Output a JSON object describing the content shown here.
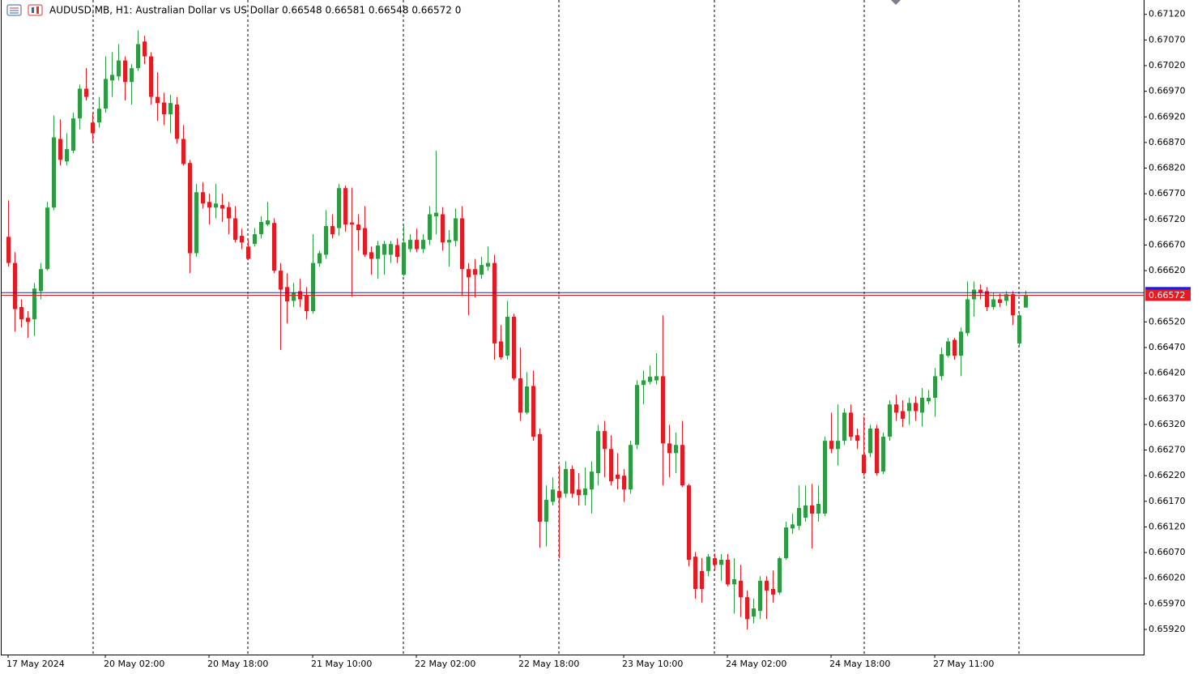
{
  "chart_data": {
    "type": "candlestick",
    "title": "AUDUSD.MB, H1:  Australian Dollar vs US Dollar  0.66548 0.66581 0.66548 0.66572  0",
    "categories": [
      "17 May 2024",
      null,
      null,
      null,
      null,
      null,
      null,
      null,
      null,
      null,
      null,
      null,
      null,
      null,
      null,
      "20 May 02:00",
      null,
      null,
      null,
      null,
      null,
      null,
      null,
      null,
      null,
      null,
      null,
      null,
      null,
      null,
      null,
      "20 May 18:00",
      null,
      null,
      null,
      null,
      null,
      null,
      null,
      null,
      null,
      null,
      null,
      null,
      null,
      null,
      null,
      "21 May 10:00",
      null,
      null,
      null,
      null,
      null,
      null,
      null,
      null,
      null,
      null,
      null,
      null,
      null,
      null,
      null,
      "22 May 02:00",
      null,
      null,
      null,
      null,
      null,
      null,
      null,
      null,
      null,
      null,
      null,
      null,
      null,
      null,
      null,
      "22 May 18:00",
      null,
      null,
      null,
      null,
      null,
      null,
      null,
      null,
      null,
      null,
      null,
      null,
      null,
      null,
      null,
      "23 May 10:00",
      null,
      null,
      null,
      null,
      null,
      null,
      null,
      null,
      null,
      null,
      null,
      null,
      null,
      null,
      null,
      "24 May 02:00",
      null,
      null,
      null,
      null,
      null,
      null,
      null,
      null,
      null,
      null,
      null,
      null,
      null,
      null,
      null,
      "24 May 18:00",
      null,
      null,
      null,
      null,
      null,
      null,
      null,
      null,
      null,
      null,
      null,
      null,
      null,
      null,
      null,
      "27 May 11:00",
      null,
      null,
      null,
      null,
      null,
      null,
      null,
      null,
      null,
      null,
      null,
      null,
      null,
      null
    ],
    "open": [
      0.66686,
      0.66635,
      0.66549,
      0.66528,
      0.66525,
      0.6658,
      0.66623,
      0.66743,
      0.66877,
      0.66833,
      0.66854,
      0.66917,
      0.66975,
      0.66909,
      0.66909,
      0.66936,
      0.66991,
      0.66999,
      0.6703,
      0.66988,
      0.67015,
      0.67067,
      0.67038,
      0.66959,
      0.66948,
      0.66925,
      0.66944,
      0.66877,
      0.6683,
      0.66654,
      0.66773,
      0.66754,
      0.66743,
      0.66748,
      0.66744,
      0.66722,
      0.66688,
      0.66667,
      0.66672,
      0.66691,
      0.6671,
      0.66713,
      0.6662,
      0.66588,
      0.66561,
      0.6658,
      0.66572,
      0.66541,
      0.66634,
      0.66651,
      0.66707,
      0.66703,
      0.66781,
      0.66714,
      0.6671,
      0.66703,
      0.66656,
      0.66643,
      0.66651,
      0.66651,
      0.6667,
      0.66612,
      0.66662,
      0.6668,
      0.66662,
      0.6668,
      0.66726,
      0.6673,
      0.66675,
      0.66678,
      0.66722,
      0.66623,
      0.66623,
      0.66612,
      0.66628,
      0.66635,
      0.66482,
      0.66454,
      0.6653,
      0.6641,
      0.66343,
      0.66395,
      0.66301,
      0.6613,
      0.66169,
      0.6619,
      0.66185,
      0.66233,
      0.66193,
      0.66182,
      0.66193,
      0.66225,
      0.66307,
      0.66272,
      0.66222,
      0.6622,
      0.66193,
      0.6628,
      0.66397,
      0.66403,
      0.66406,
      0.66414,
      0.66283,
      0.66264,
      0.6628,
      0.66201,
      0.66062,
      0.66034,
      0.66034,
      0.66059,
      0.66046,
      0.66056,
      0.66008,
      0.66015,
      0.65983,
      0.65945,
      0.65956,
      0.66015,
      0.65999,
      0.65992,
      0.66059,
      0.66117,
      0.66122,
      0.66138,
      0.66162,
      0.66146,
      0.66146,
      0.66288,
      0.66272,
      0.66288,
      0.66343,
      0.66299,
      0.66261,
      0.66264,
      0.66312,
      0.66228,
      0.66296,
      0.66359,
      0.66346,
      0.66346,
      0.66362,
      0.66343,
      0.66365,
      0.66372,
      0.66414,
      0.66454,
      0.66485,
      0.66454,
      0.66498,
      0.66564,
      0.66583,
      0.6658,
      0.66549,
      0.66564,
      0.66561,
      0.66574,
      0.66478,
      0.66548
    ],
    "high": [
      0.66757,
      0.66656,
      0.66564,
      0.66541,
      0.66596,
      0.66635,
      0.66754,
      0.66923,
      0.66915,
      0.66888,
      0.66928,
      0.66983,
      0.67015,
      0.66928,
      0.66959,
      0.67038,
      0.67046,
      0.67062,
      0.67038,
      0.67023,
      0.67089,
      0.67078,
      0.67046,
      0.67007,
      0.66967,
      0.66963,
      0.66959,
      0.66904,
      0.66836,
      0.66789,
      0.66793,
      0.6677,
      0.66789,
      0.6677,
      0.66754,
      0.66746,
      0.66702,
      0.66681,
      0.66703,
      0.66726,
      0.66754,
      0.66722,
      0.66635,
      0.66615,
      0.66596,
      0.66604,
      0.66588,
      0.66691,
      0.66659,
      0.66738,
      0.6673,
      0.66789,
      0.66786,
      0.66782,
      0.6673,
      0.66746,
      0.66667,
      0.66678,
      0.66678,
      0.66678,
      0.66683,
      0.66707,
      0.66691,
      0.66702,
      0.66691,
      0.66746,
      0.66854,
      0.66744,
      0.66699,
      0.66741,
      0.66746,
      0.66635,
      0.66643,
      0.66647,
      0.66667,
      0.66651,
      0.66514,
      0.66561,
      0.66536,
      0.6647,
      0.66422,
      0.66425,
      0.66312,
      0.66201,
      0.66217,
      0.6624,
      0.66248,
      0.6624,
      0.66225,
      0.66236,
      0.66248,
      0.66319,
      0.66327,
      0.66299,
      0.66264,
      0.66233,
      0.66288,
      0.66406,
      0.66425,
      0.66435,
      0.66459,
      0.66533,
      0.66319,
      0.66304,
      0.66327,
      0.66204,
      0.66071,
      0.66059,
      0.66067,
      0.66068,
      0.66067,
      0.66067,
      0.66059,
      0.66046,
      0.65996,
      0.6598,
      0.66024,
      0.66024,
      0.66035,
      0.66062,
      0.6613,
      0.66146,
      0.66201,
      0.66201,
      0.66204,
      0.66201,
      0.66296,
      0.66343,
      0.66359,
      0.66351,
      0.66359,
      0.66312,
      0.66335,
      0.66319,
      0.66319,
      0.66304,
      0.66367,
      0.66378,
      0.66367,
      0.66372,
      0.66375,
      0.66391,
      0.66387,
      0.6643,
      0.6647,
      0.66489,
      0.66489,
      0.66509,
      0.66599,
      0.66599,
      0.66593,
      0.66588,
      0.66577,
      0.66575,
      0.6658,
      0.6658,
      0.66536,
      0.66581
    ],
    "low": [
      0.66628,
      0.66501,
      0.66509,
      0.66489,
      0.66493,
      0.66564,
      0.6662,
      0.66738,
      0.66825,
      0.66825,
      0.66849,
      0.66896,
      0.66952,
      0.66872,
      0.66899,
      0.66928,
      0.66959,
      0.66991,
      0.66952,
      0.66944,
      0.6701,
      0.67023,
      0.66944,
      0.66912,
      0.66904,
      0.66888,
      0.66868,
      0.66825,
      0.66615,
      0.66647,
      0.66741,
      0.6671,
      0.66722,
      0.66715,
      0.66691,
      0.66675,
      0.66662,
      0.6664,
      0.66667,
      0.66683,
      0.66707,
      0.66615,
      0.66465,
      0.66517,
      0.66549,
      0.66549,
      0.66525,
      0.66536,
      0.66628,
      0.66643,
      0.66683,
      0.66688,
      0.66696,
      0.66569,
      0.66659,
      0.66647,
      0.66612,
      0.66604,
      0.66612,
      0.66635,
      0.66635,
      0.66609,
      0.66656,
      0.66656,
      0.66654,
      0.6667,
      0.66691,
      0.66659,
      0.66628,
      0.66667,
      0.66572,
      0.66533,
      0.66568,
      0.66604,
      0.6662,
      0.66446,
      0.66446,
      0.66446,
      0.66406,
      0.66327,
      0.6634,
      0.66288,
      0.66079,
      0.66082,
      0.66162,
      0.66059,
      0.66177,
      0.66177,
      0.66162,
      0.66162,
      0.66146,
      0.66201,
      0.66217,
      0.66201,
      0.66193,
      0.66169,
      0.66185,
      0.66272,
      0.66359,
      0.66398,
      0.66398,
      0.66201,
      0.66217,
      0.66225,
      0.66198,
      0.66043,
      0.6598,
      0.65972,
      0.66024,
      0.66035,
      0.66015,
      0.66004,
      0.65951,
      0.65944,
      0.6592,
      0.65932,
      0.6594,
      0.6594,
      0.65972,
      0.65988,
      0.66056,
      0.66106,
      0.66114,
      0.6613,
      0.66078,
      0.6613,
      0.66141,
      0.66264,
      0.6624,
      0.6628,
      0.66288,
      0.66272,
      0.6622,
      0.66256,
      0.6622,
      0.66223,
      0.66288,
      0.66327,
      0.66315,
      0.66319,
      0.66327,
      0.66316,
      0.66359,
      0.66335,
      0.66406,
      0.66451,
      0.66446,
      0.66414,
      0.66493,
      0.6653,
      0.66564,
      0.66541,
      0.66544,
      0.66549,
      0.66552,
      0.66514,
      0.66473,
      0.66548
    ],
    "close": [
      0.66635,
      0.66545,
      0.66525,
      0.6652,
      0.66585,
      0.66623,
      0.66743,
      0.6688,
      0.66836,
      0.66857,
      0.66917,
      0.66975,
      0.66959,
      0.66888,
      0.66936,
      0.66994,
      0.67002,
      0.6703,
      0.66988,
      0.67015,
      0.67062,
      0.67038,
      0.66959,
      0.66947,
      0.66925,
      0.66947,
      0.66877,
      0.66828,
      0.66654,
      0.66773,
      0.66751,
      0.66743,
      0.66751,
      0.66741,
      0.66722,
      0.6668,
      0.66675,
      0.66643,
      0.66691,
      0.66715,
      0.66718,
      0.6662,
      0.66583,
      0.6656,
      0.66577,
      0.66564,
      0.66541,
      0.66635,
      0.66654,
      0.66707,
      0.66691,
      0.66781,
      0.6671,
      0.6671,
      0.66699,
      0.66651,
      0.66643,
      0.66669,
      0.66672,
      0.66672,
      0.66647,
      0.66675,
      0.6668,
      0.66662,
      0.6668,
      0.6673,
      0.66733,
      0.66675,
      0.6668,
      0.66722,
      0.66623,
      0.66607,
      0.66612,
      0.66631,
      0.66635,
      0.66478,
      0.66451,
      0.6653,
      0.6641,
      0.66343,
      0.66394,
      0.66296,
      0.6613,
      0.66173,
      0.66193,
      0.66177,
      0.66233,
      0.66185,
      0.66182,
      0.66195,
      0.66228,
      0.66307,
      0.66272,
      0.66209,
      0.66214,
      0.66193,
      0.6628,
      0.66397,
      0.66406,
      0.66413,
      0.66414,
      0.66283,
      0.66264,
      0.6628,
      0.66201,
      0.66056,
      0.65999,
      0.65999,
      0.66062,
      0.66046,
      0.66056,
      0.66008,
      0.66018,
      0.65983,
      0.6594,
      0.65961,
      0.66015,
      0.65996,
      0.65988,
      0.66059,
      0.66119,
      0.66125,
      0.66157,
      0.66162,
      0.66146,
      0.66165,
      0.66288,
      0.66272,
      0.66288,
      0.66343,
      0.66296,
      0.66288,
      0.66225,
      0.66312,
      0.66225,
      0.66296,
      0.66359,
      0.66343,
      0.66331,
      0.66362,
      0.66346,
      0.66372,
      0.66372,
      0.66414,
      0.66457,
      0.66482,
      0.66454,
      0.66501,
      0.66564,
      0.66583,
      0.66577,
      0.66549,
      0.66564,
      0.66557,
      0.66574,
      0.66533,
      0.66533,
      0.66572
    ],
    "up_color": "#2e9a44",
    "down_color": "#e31b23",
    "ylim": [
      0.65871,
      0.67148
    ],
    "yticks": [
      {
        "value": 0.6712,
        "label": "0.67120"
      },
      {
        "value": 0.6707,
        "label": "0.67070"
      },
      {
        "value": 0.6702,
        "label": "0.67020"
      },
      {
        "value": 0.6697,
        "label": "0.66970"
      },
      {
        "value": 0.6692,
        "label": "0.66920"
      },
      {
        "value": 0.6687,
        "label": "0.66870"
      },
      {
        "value": 0.6682,
        "label": "0.66820"
      },
      {
        "value": 0.6677,
        "label": "0.66770"
      },
      {
        "value": 0.6672,
        "label": "0.66720"
      },
      {
        "value": 0.6667,
        "label": "0.66670"
      },
      {
        "value": 0.6662,
        "label": "0.66620"
      },
      {
        "value": 0.6652,
        "label": "0.66520"
      },
      {
        "value": 0.6647,
        "label": "0.66470"
      },
      {
        "value": 0.6642,
        "label": "0.66420"
      },
      {
        "value": 0.6637,
        "label": "0.66370"
      },
      {
        "value": 0.6632,
        "label": "0.66320"
      },
      {
        "value": 0.6627,
        "label": "0.66270"
      },
      {
        "value": 0.6622,
        "label": "0.66220"
      },
      {
        "value": 0.6617,
        "label": "0.66170"
      },
      {
        "value": 0.6612,
        "label": "0.66120"
      },
      {
        "value": 0.6607,
        "label": "0.66070"
      },
      {
        "value": 0.6602,
        "label": "0.66020"
      },
      {
        "value": 0.6597,
        "label": "0.65970"
      },
      {
        "value": 0.6592,
        "label": "0.65920"
      }
    ],
    "last_price": 0.66572,
    "last_price_color": "#e31b23",
    "ask_price": 0.66577,
    "ask_price_color": "#1b1bd8"
  }
}
